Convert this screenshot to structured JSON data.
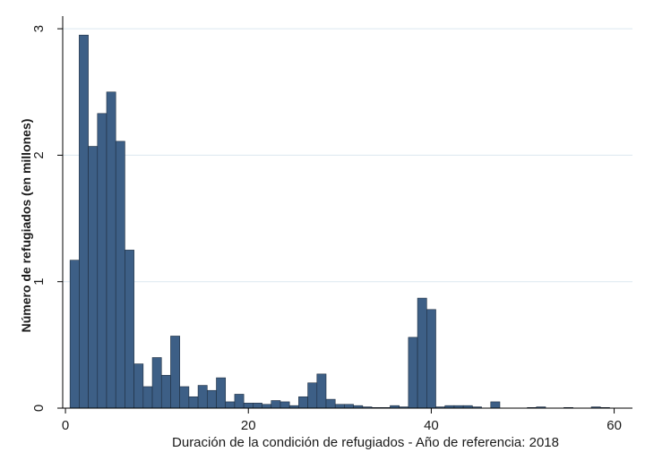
{
  "chart_data": {
    "type": "bar",
    "title": "",
    "xlabel": "Duración de la condición de refugiados - Año de referencia: 2018",
    "ylabel": "Número de refugiados (en millones)",
    "xlim": [
      -0.3,
      62
    ],
    "ylim": [
      0,
      3.1
    ],
    "x_ticks": [
      0,
      20,
      40,
      60
    ],
    "y_ticks": [
      0,
      1,
      2,
      3
    ],
    "grid": true,
    "bin_width": 1,
    "bar_color": "#3d5f86",
    "bar_edge_color": "#1e2e40",
    "grid_color": "#dbe7ef",
    "x": [
      1,
      2,
      3,
      4,
      5,
      6,
      7,
      8,
      9,
      10,
      11,
      12,
      13,
      14,
      15,
      16,
      17,
      18,
      19,
      20,
      21,
      22,
      23,
      24,
      25,
      26,
      27,
      28,
      29,
      30,
      31,
      32,
      33,
      34,
      35,
      36,
      37,
      38,
      39,
      40,
      41,
      42,
      43,
      44,
      45,
      46,
      47,
      48,
      49,
      50,
      51,
      52,
      53,
      54,
      55,
      56,
      57,
      58,
      59
    ],
    "values": [
      1.17,
      2.95,
      2.07,
      2.33,
      2.5,
      2.11,
      1.25,
      0.35,
      0.17,
      0.4,
      0.26,
      0.57,
      0.17,
      0.09,
      0.18,
      0.14,
      0.24,
      0.05,
      0.11,
      0.04,
      0.04,
      0.03,
      0.06,
      0.05,
      0.02,
      0.09,
      0.2,
      0.27,
      0.07,
      0.03,
      0.03,
      0.02,
      0.01,
      0.005,
      0.005,
      0.02,
      0.01,
      0.56,
      0.87,
      0.78,
      0.01,
      0.02,
      0.02,
      0.02,
      0.01,
      0.0,
      0.05,
      0.0,
      0.0,
      0.0,
      0.005,
      0.01,
      0.0,
      0.0,
      0.005,
      0.0,
      0.0,
      0.01,
      0.005
    ]
  }
}
